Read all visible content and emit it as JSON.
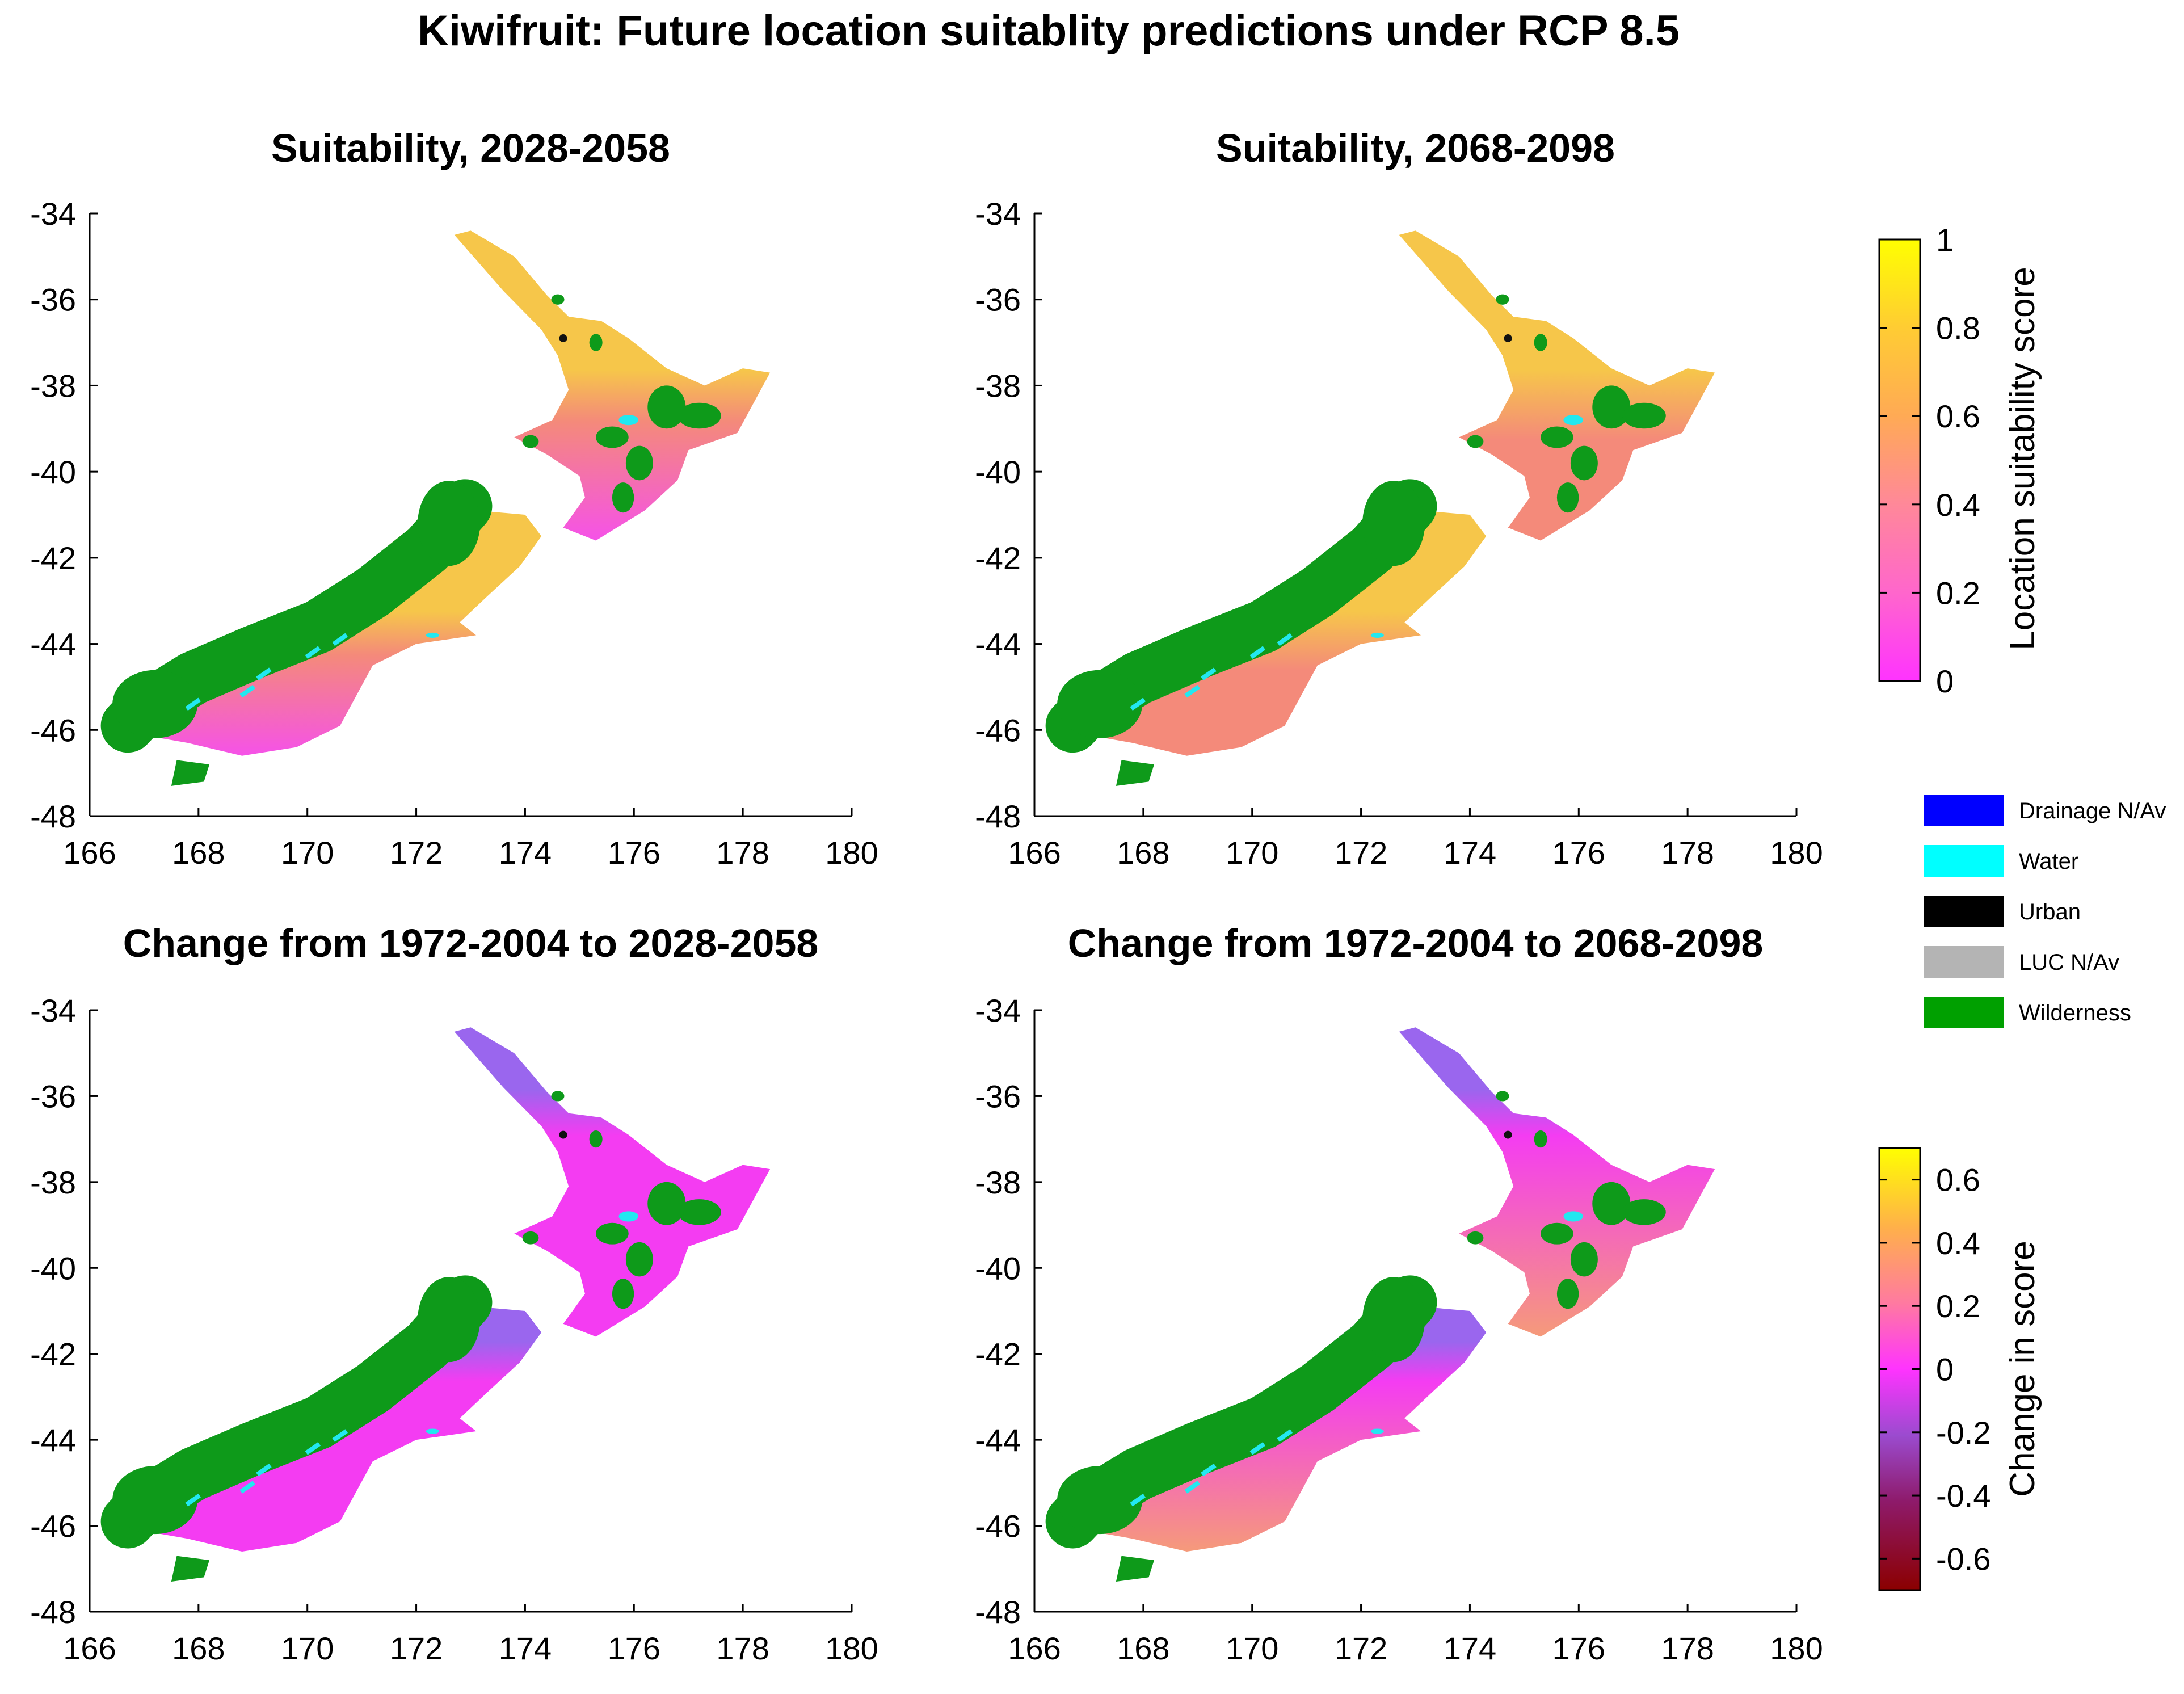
{
  "title": "Kiwifruit: Future location suitablity predictions under RCP 8.5",
  "map_axes": {
    "x_ticks": [
      "166",
      "168",
      "170",
      "172",
      "174",
      "176",
      "178",
      "180"
    ],
    "y_ticks": [
      "-34",
      "-36",
      "-38",
      "-40",
      "-42",
      "-44",
      "-46",
      "-48"
    ],
    "xlim": [
      166,
      180
    ],
    "ylim": [
      -48,
      -34
    ]
  },
  "panels": [
    {
      "title": "Suitability, 2028-2058",
      "scale": "suitability",
      "change_tint": 0.05
    },
    {
      "title": "Suitability, 2068-2098",
      "scale": "suitability",
      "change_tint": 0.25
    },
    {
      "title": "Change from 1972-2004 to 2028-2058",
      "scale": "change",
      "change_tint": 0.05
    },
    {
      "title": "Change from 1972-2004 to 2068-2098",
      "scale": "change",
      "change_tint": 0.25
    }
  ],
  "suitability_colorbar": {
    "label": "Location suitability score",
    "ticks": [
      "1",
      "0.8",
      "0.6",
      "0.4",
      "0.2",
      "0"
    ],
    "range": [
      0,
      1
    ],
    "colors": [
      "#ff33ff",
      "#ff66cc",
      "#ff8899",
      "#ffaa55",
      "#ffcc33",
      "#ffff00"
    ]
  },
  "change_colorbar": {
    "label": "Change in score",
    "ticks": [
      "0.6",
      "0.4",
      "0.2",
      "0",
      "-0.2",
      "-0.4",
      "-0.6"
    ],
    "range": [
      -0.7,
      0.7
    ],
    "colors": [
      "#8b0000",
      "#8e1a6a",
      "#9b4bcf",
      "#ff33ff",
      "#ff7aa0",
      "#ffb04a",
      "#ffff00"
    ]
  },
  "legend": [
    {
      "label": "Drainage N/Av",
      "color": "#0000ff"
    },
    {
      "label": "Water",
      "color": "#00ffff"
    },
    {
      "label": "Urban",
      "color": "#000000"
    },
    {
      "label": "LUC N/Av",
      "color": "#b4b4b4"
    },
    {
      "label": "Wilderness",
      "color": "#00a000"
    }
  ],
  "colors": {
    "wilderness": "#0e9a1a",
    "water": "#22e8f0",
    "urban": "#111111",
    "suitable_high": "#f6c64a",
    "suitable_mid": "#f48a7a",
    "suitable_low": "#f552e8",
    "change_neg": "#9a66ee",
    "change_zero": "#f43cf2",
    "change_pos": "#f59a7a"
  }
}
